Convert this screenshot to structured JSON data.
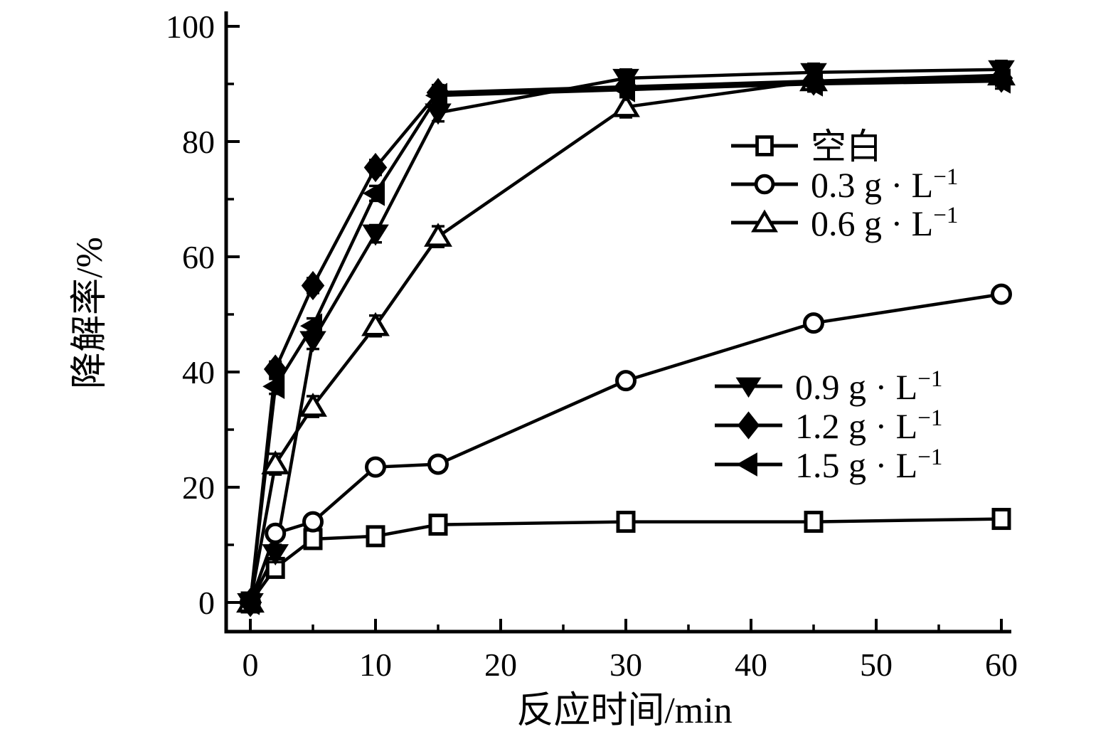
{
  "figure": {
    "background_color": "#ffffff",
    "foreground_color": "#000000"
  },
  "chart_data": {
    "type": "line",
    "title": "",
    "xlabel": "反应时间/min",
    "ylabel": "降解率/%",
    "xlim": [
      0,
      60
    ],
    "ylim": [
      0,
      100
    ],
    "grid": false,
    "x": [
      0,
      2,
      5,
      10,
      15,
      30,
      45,
      60
    ],
    "x_major_ticks": [
      0,
      10,
      20,
      30,
      40,
      50,
      60
    ],
    "x_major_tick_labels": [
      "0",
      "10",
      "20",
      "30",
      "40",
      "50",
      "60"
    ],
    "x_minor_ticks": [
      5,
      15,
      25,
      35,
      45,
      55
    ],
    "y_major_ticks": [
      0,
      20,
      40,
      60,
      80,
      100
    ],
    "y_major_tick_labels": [
      "0",
      "20",
      "40",
      "60",
      "80",
      "100"
    ],
    "y_minor_ticks": [
      10,
      30,
      50,
      70,
      90
    ],
    "legend_groups": [
      {
        "position": "upper-right-inside",
        "series": [
          "空白",
          "0.3 g·L⁻¹",
          "0.6 g·L⁻¹"
        ]
      },
      {
        "position": "middle-right-inside",
        "series": [
          "0.9 g·L⁻¹",
          "1.2 g·L⁻¹",
          "1.5 g·L⁻¹"
        ]
      }
    ],
    "series": [
      {
        "name": "空白",
        "marker": "open-square",
        "color": "#000000",
        "legend_group": 0,
        "values": [
          0,
          6,
          11,
          11.5,
          13.5,
          14,
          14,
          14.5
        ],
        "yerr": 0.8
      },
      {
        "name": "0.3 g·L⁻¹",
        "marker": "open-circle",
        "color": "#000000",
        "legend_group": 0,
        "values": [
          0,
          12,
          14,
          23.5,
          24,
          38.5,
          48.5,
          53.5
        ],
        "yerr": 1.3
      },
      {
        "name": "0.6 g·L⁻¹",
        "marker": "open-triangle-up",
        "color": "#000000",
        "legend_group": 0,
        "values": [
          0,
          24,
          34,
          48,
          63.5,
          86,
          90.5,
          91.5
        ],
        "yerr": 1.8
      },
      {
        "name": "0.9 g·L⁻¹",
        "marker": "filled-triangle-down",
        "color": "#000000",
        "legend_group": 1,
        "values": [
          0,
          8.5,
          45.5,
          64,
          85,
          91,
          92,
          92.5
        ],
        "yerr": 1.5
      },
      {
        "name": "1.2 g·L⁻¹",
        "marker": "filled-diamond",
        "color": "#000000",
        "legend_group": 1,
        "values": [
          0,
          40.5,
          55,
          75.5,
          88.5,
          89.5,
          90.5,
          91
        ],
        "yerr": 1.3
      },
      {
        "name": "1.5 g·L⁻¹",
        "marker": "filled-triangle-left",
        "color": "#000000",
        "legend_group": 1,
        "values": [
          0,
          37.5,
          48,
          71,
          88,
          89,
          90,
          90.5
        ],
        "yerr": 1.3
      }
    ]
  }
}
